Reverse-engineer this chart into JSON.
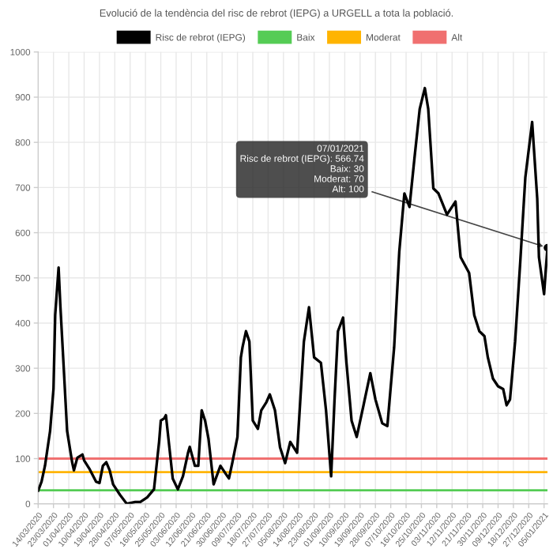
{
  "chart_data": {
    "type": "line",
    "title": "Evolució de la tendència del risc de rebrot (IEPG) a URGELL a tota la població.",
    "series": [
      {
        "name": "Risc de rebrot (IEPG)",
        "color": "#000000",
        "x": [
          "2020-03-14",
          "2020-03-16",
          "2020-03-18",
          "2020-03-21",
          "2020-03-23",
          "2020-03-24",
          "2020-03-26",
          "2020-03-27",
          "2020-03-29",
          "2020-03-31",
          "2020-04-03",
          "2020-04-04",
          "2020-04-06",
          "2020-04-09",
          "2020-04-10",
          "2020-04-13",
          "2020-04-17",
          "2020-04-19",
          "2020-04-21",
          "2020-04-23",
          "2020-04-25",
          "2020-04-27",
          "2020-05-01",
          "2020-05-05",
          "2020-05-10",
          "2020-05-13",
          "2020-05-17",
          "2020-05-21",
          "2020-05-22",
          "2020-05-24",
          "2020-05-25",
          "2020-05-27",
          "2020-05-28",
          "2020-05-30",
          "2020-06-01",
          "2020-06-04",
          "2020-06-07",
          "2020-06-10",
          "2020-06-11",
          "2020-06-14",
          "2020-06-16",
          "2020-06-18",
          "2020-06-20",
          "2020-06-22",
          "2020-06-25",
          "2020-06-29",
          "2020-07-02",
          "2020-07-04",
          "2020-07-06",
          "2020-07-09",
          "2020-07-11",
          "2020-07-12",
          "2020-07-14",
          "2020-07-16",
          "2020-07-18",
          "2020-07-21",
          "2020-07-23",
          "2020-07-26",
          "2020-07-28",
          "2020-07-31",
          "2020-08-03",
          "2020-08-06",
          "2020-08-09",
          "2020-08-13",
          "2020-08-17",
          "2020-08-20",
          "2020-08-23",
          "2020-08-27",
          "2020-08-30",
          "2020-09-02",
          "2020-09-04",
          "2020-09-06",
          "2020-09-09",
          "2020-09-11",
          "2020-09-14",
          "2020-09-17",
          "2020-09-21",
          "2020-09-25",
          "2020-09-28",
          "2020-10-02",
          "2020-10-05",
          "2020-10-09",
          "2020-10-12",
          "2020-10-15",
          "2020-10-18",
          "2020-10-21",
          "2020-10-24",
          "2020-10-27",
          "2020-10-29",
          "2020-11-01",
          "2020-11-04",
          "2020-11-09",
          "2020-11-14",
          "2020-11-17",
          "2020-11-22",
          "2020-11-25",
          "2020-11-28",
          "2020-12-01",
          "2020-12-03",
          "2020-12-06",
          "2020-12-09",
          "2020-12-12",
          "2020-12-14",
          "2020-12-16",
          "2020-12-19",
          "2020-12-22",
          "2020-12-25",
          "2020-12-29",
          "2021-01-01",
          "2021-01-02",
          "2021-01-05",
          "2021-01-06",
          "2021-01-07"
        ],
        "values": [
          29,
          49,
          84,
          161,
          254,
          418,
          523,
          441,
          302,
          161,
          91,
          74,
          102,
          109,
          96,
          78,
          49,
          46,
          84,
          92,
          74,
          43,
          20,
          0,
          4,
          4,
          14,
          32,
          67,
          137,
          184,
          189,
          196,
          126,
          56,
          32,
          61,
          113,
          126,
          84,
          84,
          207,
          184,
          144,
          43,
          84,
          67,
          56,
          91,
          148,
          324,
          347,
          382,
          359,
          184,
          166,
          207,
          225,
          242,
          207,
          125,
          90,
          137,
          113,
          359,
          435,
          324,
          312,
          207,
          61,
          231,
          382,
          412,
          312,
          184,
          148,
          218,
          289,
          231,
          178,
          172,
          347,
          558,
          687,
          657,
          768,
          874,
          920,
          874,
          698,
          687,
          640,
          669,
          546,
          511,
          418,
          382,
          371,
          324,
          277,
          260,
          254,
          218,
          231,
          359,
          534,
          722,
          845,
          675,
          546,
          464,
          517,
          566.74
        ]
      },
      {
        "name": "Baix",
        "color": "#55cc55",
        "x": [
          "2020-03-14",
          "2021-01-07"
        ],
        "values": [
          30,
          30
        ]
      },
      {
        "name": "Moderat",
        "color": "#ffb400",
        "x": [
          "2020-03-14",
          "2021-01-07"
        ],
        "values": [
          70,
          70
        ]
      },
      {
        "name": "Alt",
        "color": "#f07070",
        "x": [
          "2020-03-14",
          "2021-01-07"
        ],
        "values": [
          100,
          100
        ]
      }
    ],
    "xlim": [
      "2020-03-14",
      "2021-01-07"
    ],
    "xticks": [
      {
        "value": "2020-03-14",
        "label": "14/03/2020"
      },
      {
        "value": "2020-03-23",
        "label": "23/03/2020"
      },
      {
        "value": "2020-04-01",
        "label": "01/04/2020"
      },
      {
        "value": "2020-04-10",
        "label": "10/04/2020"
      },
      {
        "value": "2020-04-19",
        "label": "19/04/2020"
      },
      {
        "value": "2020-04-28",
        "label": "28/04/2020"
      },
      {
        "value": "2020-05-07",
        "label": "07/05/2020"
      },
      {
        "value": "2020-05-16",
        "label": "16/05/2020"
      },
      {
        "value": "2020-05-25",
        "label": "25/05/2020"
      },
      {
        "value": "2020-06-03",
        "label": "03/06/2020"
      },
      {
        "value": "2020-06-12",
        "label": "12/06/2020"
      },
      {
        "value": "2020-06-21",
        "label": "21/06/2020"
      },
      {
        "value": "2020-06-30",
        "label": "30/06/2020"
      },
      {
        "value": "2020-07-09",
        "label": "09/07/2020"
      },
      {
        "value": "2020-07-18",
        "label": "18/07/2020"
      },
      {
        "value": "2020-07-27",
        "label": "27/07/2020"
      },
      {
        "value": "2020-08-05",
        "label": "05/08/2020"
      },
      {
        "value": "2020-08-14",
        "label": "14/08/2020"
      },
      {
        "value": "2020-08-23",
        "label": "23/08/2020"
      },
      {
        "value": "2020-09-01",
        "label": "01/09/2020"
      },
      {
        "value": "2020-09-10",
        "label": "10/09/2020"
      },
      {
        "value": "2020-09-19",
        "label": "19/09/2020"
      },
      {
        "value": "2020-09-28",
        "label": "28/09/2020"
      },
      {
        "value": "2020-10-07",
        "label": "07/10/2020"
      },
      {
        "value": "2020-10-16",
        "label": "16/10/2020"
      },
      {
        "value": "2020-10-25",
        "label": "25/10/2020"
      },
      {
        "value": "2020-11-03",
        "label": "03/11/2020"
      },
      {
        "value": "2020-11-12",
        "label": "12/11/2020"
      },
      {
        "value": "2020-11-21",
        "label": "21/11/2020"
      },
      {
        "value": "2020-11-30",
        "label": "30/11/2020"
      },
      {
        "value": "2020-12-09",
        "label": "09/12/2020"
      },
      {
        "value": "2020-12-18",
        "label": "18/12/2020"
      },
      {
        "value": "2020-12-27",
        "label": "27/12/2020"
      },
      {
        "value": "2021-01-05",
        "label": "05/01/2021"
      }
    ],
    "ylim": [
      0,
      1000
    ],
    "yticks": [
      0,
      100,
      200,
      300,
      400,
      500,
      600,
      700,
      800,
      900,
      1000
    ],
    "grid": true,
    "legend": "top",
    "line_style": "solid",
    "annotations": [
      {
        "text": "07/01/2021\nRisc de rebrot (IEPG): 566.74\nBaix: 30\nModerat: 70\nAlt: 100",
        "x": "2021-01-07",
        "y": 566.74
      }
    ]
  }
}
